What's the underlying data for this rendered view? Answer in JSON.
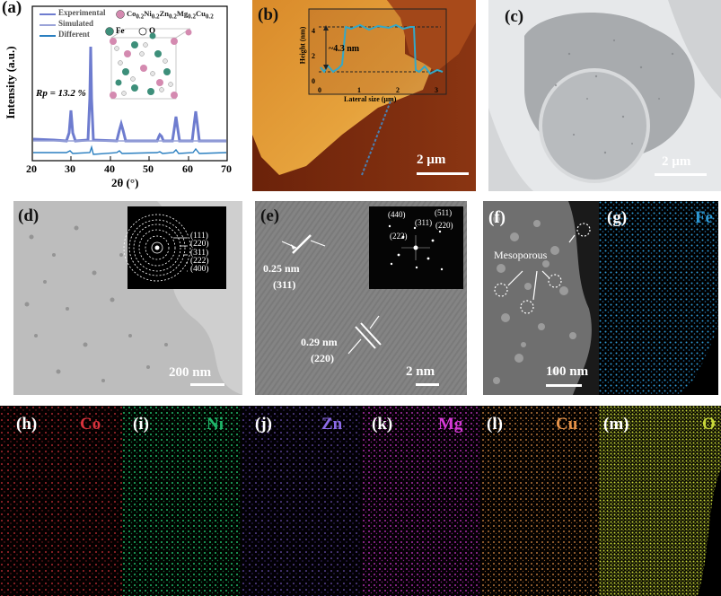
{
  "panels": {
    "a": {
      "label": "(a)",
      "legend": [
        "Experimental",
        "Simulated",
        "Different"
      ],
      "formula_parts": [
        "Co",
        "0.2",
        "Ni",
        "0.2",
        "Zn",
        "0.2",
        "Mg",
        "0.2",
        "Cu",
        "0.2"
      ],
      "atoms": [
        "Fe",
        "O"
      ],
      "rp": "Rp = 13.2 %",
      "ylabel": "Intensity (a.u.)",
      "xlabel": "2θ (°)",
      "xticks": [
        "20",
        "30",
        "40",
        "50",
        "60",
        "70"
      ]
    },
    "b": {
      "label": "(b)",
      "inset_ylabel": "Height (nm)",
      "inset_xlabel": "Lateral size (µm)",
      "inset_yticks": [
        "0",
        "2",
        "4"
      ],
      "inset_xticks": [
        "0",
        "1",
        "2",
        "3"
      ],
      "thickness": "~4.3 nm",
      "scale": "2 µm"
    },
    "c": {
      "label": "(c)",
      "scale": "2 µm"
    },
    "d": {
      "label": "(d)",
      "rings": [
        "(111)",
        "(220)",
        "(311)",
        "(222)",
        "(400)"
      ],
      "scale": "200 nm"
    },
    "e": {
      "label": "(e)",
      "fringe1_d": "0.25 nm",
      "fringe1_hkl": "(311)",
      "fringe2_d": "0.29 nm",
      "fringe2_hkl": "(220)",
      "fft_spots": [
        "(440)",
        "(511)",
        "(311)",
        "(220)",
        "(222)"
      ],
      "scale": "2 nm"
    },
    "f": {
      "label": "(f)",
      "annotation": "Mesoporous",
      "scale": "100 nm"
    },
    "g": {
      "label": "(g)",
      "element": "Fe"
    },
    "maps": [
      {
        "label": "(h)",
        "element": "Co"
      },
      {
        "label": "(i)",
        "element": "Ni"
      },
      {
        "label": "(j)",
        "element": "Zn"
      },
      {
        "label": "(k)",
        "element": "Mg"
      },
      {
        "label": "(l)",
        "element": "Cu"
      },
      {
        "label": "(m)",
        "element": "O"
      }
    ]
  },
  "colors": {
    "experimental": "#6e7ccf",
    "simulated": "#9aa3d8",
    "different": "#2a7fc0",
    "Fe": "#2e9ad6",
    "Co": "#d8323c",
    "Ni": "#1fb86a",
    "Zn": "#8c6be8",
    "Mg": "#d63ad6",
    "Cu": "#e8944a",
    "O": "#c8d83a"
  }
}
